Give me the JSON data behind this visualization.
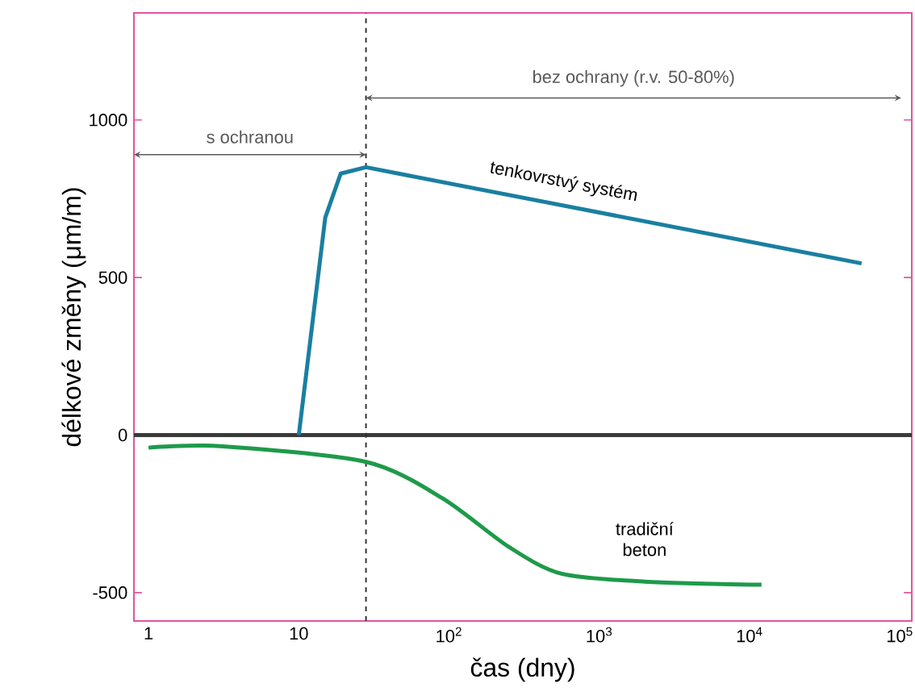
{
  "chart_data": {
    "type": "line",
    "xlabel": "čas (dny)",
    "ylabel": "délkové změny (μm/m)",
    "log": "x",
    "xlim": [
      0.8,
      120000
    ],
    "ylim": [
      -590,
      1340
    ],
    "xticks": [
      1,
      10,
      {
        "value": 100,
        "label": "10$^{2}$"
      },
      {
        "value": 1000,
        "label": "10$^{3}$"
      },
      {
        "value": 10000,
        "label": "10$^{4}$"
      },
      {
        "value": 100000,
        "label": "10$^{5}$"
      }
    ],
    "yticks": [
      -500,
      0,
      500,
      1000
    ],
    "grid": false,
    "marker": "none",
    "line_style": "solid",
    "series": [
      {
        "name": "tenkovrstvý systém",
        "color": "#1a7fa0",
        "x": [
          10,
          15,
          19,
          28,
          55600
        ],
        "values": [
          0,
          690,
          830,
          850,
          545
        ]
      },
      {
        "name": "tradiční beton",
        "color": "#1e9a4a",
        "x": [
          1,
          3,
          28,
          90,
          250,
          560,
          2000,
          12000
        ],
        "values": [
          -40,
          -35,
          -85,
          -200,
          -355,
          -440,
          -465,
          -475
        ]
      }
    ],
    "ref_lines": [
      {
        "axis": "y",
        "value": 0,
        "color": "#3a3a3a",
        "line_style": "solid"
      },
      {
        "axis": "x",
        "value": 28,
        "color": "#333333",
        "line_style": "dashed"
      }
    ],
    "annotations": [
      "s ochranou",
      "bez ochrany (r.v. 50-80%)"
    ]
  }
}
